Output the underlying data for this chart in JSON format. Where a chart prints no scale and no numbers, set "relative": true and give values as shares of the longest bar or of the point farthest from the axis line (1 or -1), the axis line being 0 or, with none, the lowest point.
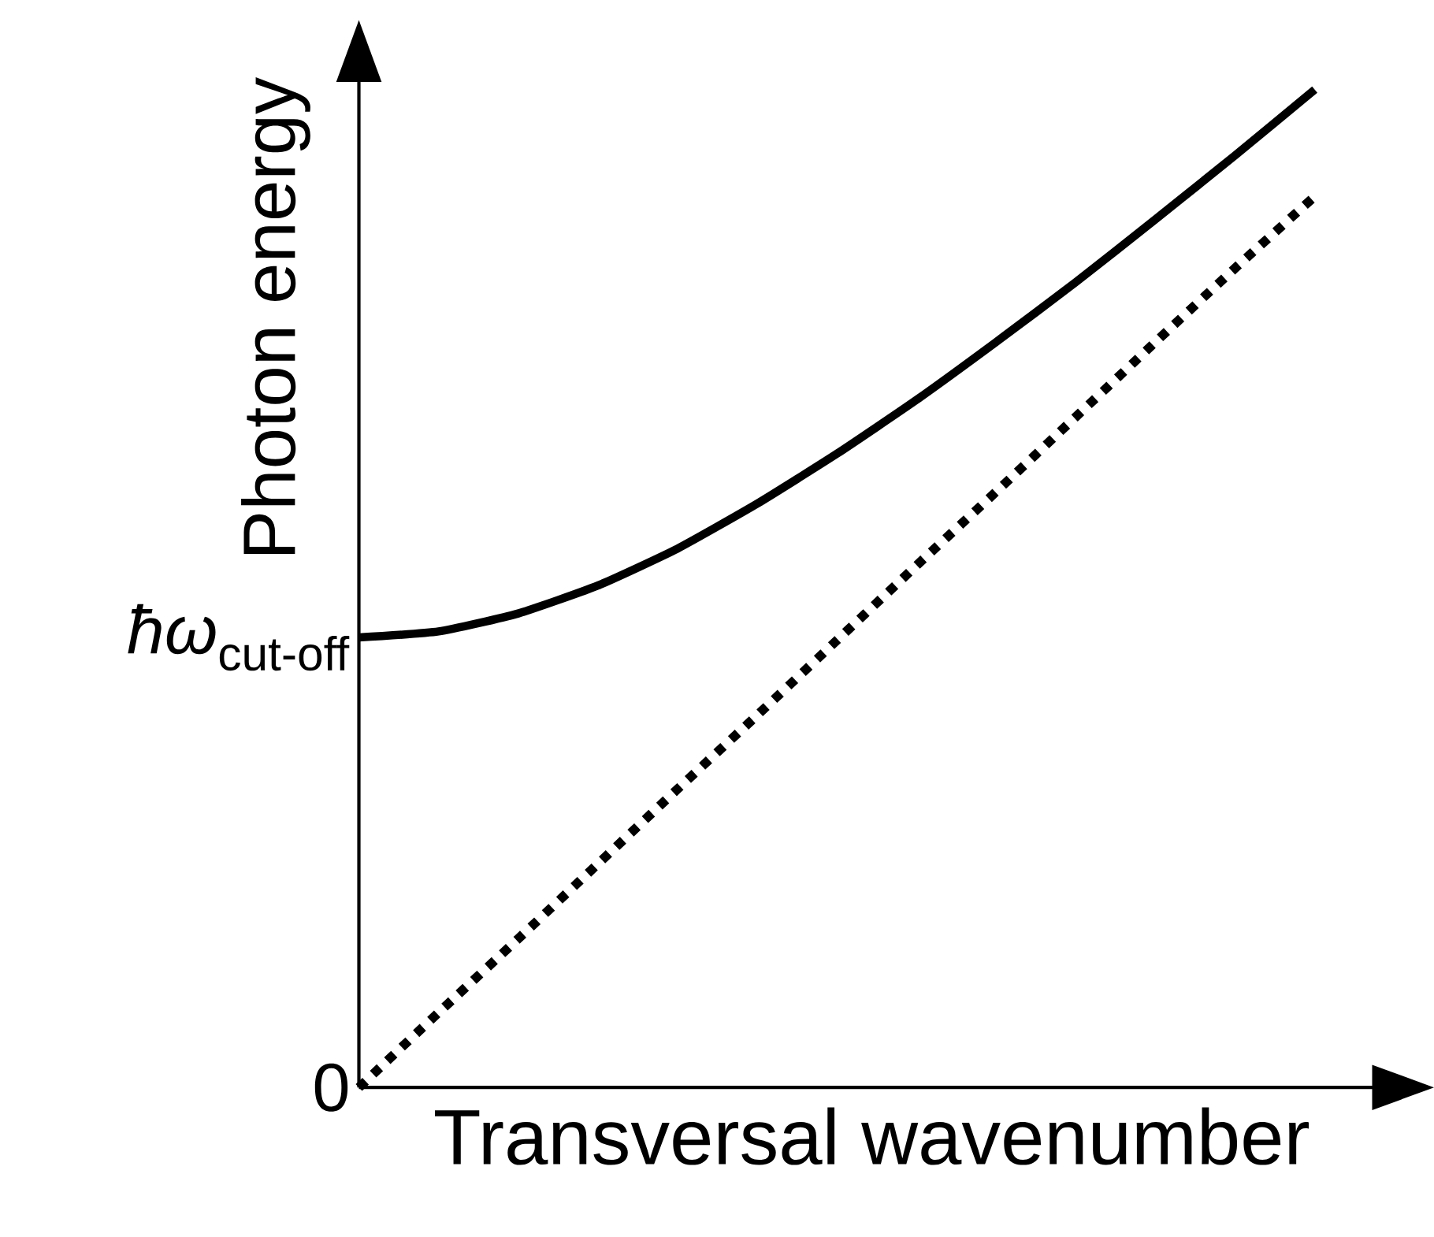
{
  "chart_data": {
    "type": "line",
    "relative": true,
    "xlabel": "Transversal wavenumber",
    "ylabel": "Photon energy",
    "categories": [
      null,
      null,
      null,
      null,
      null,
      null,
      null,
      null,
      null,
      null,
      null,
      null,
      null
    ],
    "series": [
      {
        "color": "#000000",
        "line_style": "solid",
        "values": [
          0.451,
          0.457,
          0.475,
          0.503,
          0.54,
          0.585,
          0.635,
          0.689,
          0.747,
          0.807,
          0.87,
          0.934,
          1.0
        ]
      },
      {
        "color": "#000000",
        "line_style": "dotted",
        "values": [
          0,
          0.075,
          0.149,
          0.224,
          0.299,
          0.373,
          0.448,
          0.523,
          0.597,
          0.672,
          0.747,
          0.821,
          0.893
        ]
      }
    ],
    "annotations": [
      "0",
      "*ħω*$_{cut-off}$"
    ],
    "marker": "none"
  }
}
